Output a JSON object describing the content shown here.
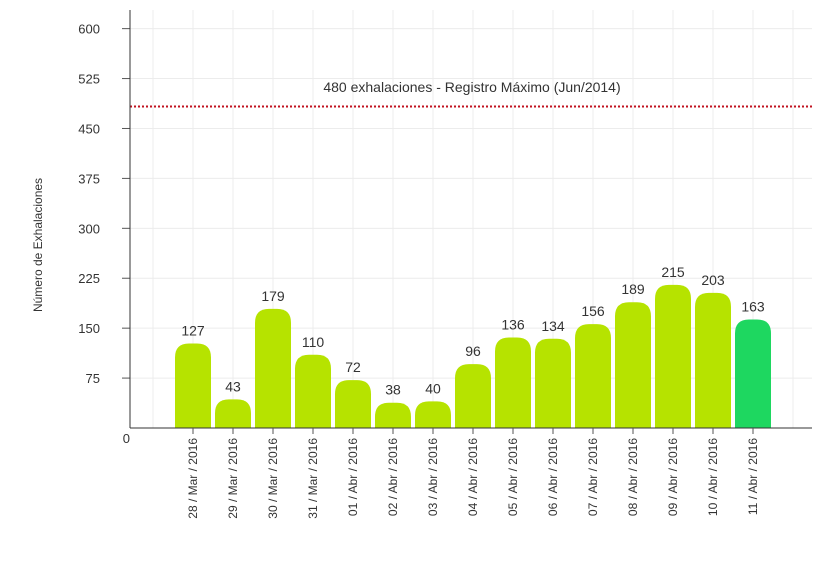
{
  "chart_data": {
    "type": "bar",
    "ylabel": "Número  de  Exhalaciones",
    "xlabel": "",
    "ylim": [
      0,
      600
    ],
    "yticks": [
      0,
      75,
      150,
      225,
      300,
      375,
      450,
      525,
      600
    ],
    "grid": true,
    "categories": [
      "28 / Mar / 2016",
      "29 / Mar / 2016",
      "30 / Mar / 2016",
      "31 / Mar / 2016",
      "01 / Abr / 2016",
      "02 / Abr / 2016",
      "03 / Abr / 2016",
      "04 / Abr / 2016",
      "05 / Abr / 2016",
      "06 / Abr / 2016",
      "07 / Abr / 2016",
      "08 / Abr / 2016",
      "09 / Abr / 2016",
      "10 / Abr / 2016",
      "11 / Abr / 2016"
    ],
    "values": [
      127,
      43,
      179,
      110,
      72,
      38,
      40,
      96,
      136,
      134,
      156,
      189,
      215,
      203,
      163
    ],
    "bar_color": "#b6e300",
    "highlight_color": "#1ed760",
    "highlight_index": 14,
    "reference_line": {
      "value": 480,
      "label": "480 exhalaciones -  Registro Máximo (Jun/2014)",
      "color": "#c1121f"
    }
  }
}
